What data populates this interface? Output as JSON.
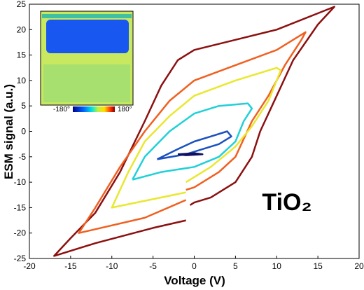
{
  "chart_data": {
    "type": "line",
    "xlabel": "Voltage (V)",
    "ylabel": "ESM signal (a.u.)",
    "annotation": "TiO₂",
    "inset_colorbar_labels": [
      "-180°",
      "180°"
    ],
    "xlim": [
      -20,
      20
    ],
    "xticks": [
      -20,
      -15,
      -10,
      -5,
      0,
      5,
      10,
      15,
      20
    ],
    "ylim": [
      -25,
      25
    ],
    "yticks": [
      -25,
      -20,
      -15,
      -10,
      -5,
      0,
      5,
      10,
      15,
      20,
      25
    ],
    "series": [
      {
        "color": "#8b1010",
        "x": [
          -1,
          -5,
          -12,
          -17,
          -15,
          -12,
          -9,
          -6,
          -4,
          -2,
          0,
          5,
          10,
          17,
          15,
          12,
          10,
          8,
          7,
          5,
          2,
          0,
          -0.5
        ],
        "values": [
          -17.5,
          -19,
          -22,
          -24.5,
          -21,
          -16,
          -8,
          2,
          9,
          14,
          16,
          18,
          20,
          24.5,
          21,
          14,
          7,
          0,
          -5,
          -10,
          -13,
          -14,
          -14.5
        ]
      },
      {
        "color": "#f06020",
        "x": [
          -1,
          -6,
          -14,
          -12,
          -9,
          -6,
          -3,
          0,
          5,
          10,
          13.5,
          13,
          11,
          9,
          7,
          5,
          3,
          0,
          -1
        ],
        "values": [
          -13.5,
          -17,
          -20,
          -15,
          -7,
          0,
          6,
          10,
          13,
          16,
          19.5,
          18,
          13,
          7,
          2,
          -5,
          -8,
          -11,
          -11.5
        ]
      },
      {
        "color": "#e8e830",
        "x": [
          -1,
          -10,
          -8,
          -6,
          -3,
          0,
          5,
          10,
          10.5,
          9,
          7,
          5,
          2,
          -1
        ],
        "values": [
          -12,
          -15,
          -8,
          -2,
          3,
          7,
          10,
          12.5,
          12,
          6,
          1,
          -3,
          -7,
          -10
        ]
      },
      {
        "color": "#20d0d8",
        "x": [
          -7.5,
          -6,
          -3,
          0,
          3,
          6.5,
          7,
          6,
          5,
          3,
          0,
          -4,
          -7.5
        ],
        "values": [
          -9.5,
          -5,
          0,
          3.5,
          5,
          5.5,
          4.5,
          2,
          -2,
          -5,
          -7,
          -8,
          -9.5
        ]
      },
      {
        "color": "#1a50c0",
        "x": [
          -4.5,
          -2,
          0,
          2,
          4,
          4.5,
          3,
          1,
          -1,
          -4.5
        ],
        "values": [
          -5.5,
          -3.5,
          -2,
          -1,
          0,
          -1,
          -2.5,
          -3.5,
          -4.5,
          -5.5
        ]
      },
      {
        "color": "#101060",
        "x": [
          -2,
          0,
          1,
          -1,
          -2
        ],
        "values": [
          -4.5,
          -4.3,
          -4.5,
          -4.7,
          -4.5
        ]
      }
    ]
  }
}
